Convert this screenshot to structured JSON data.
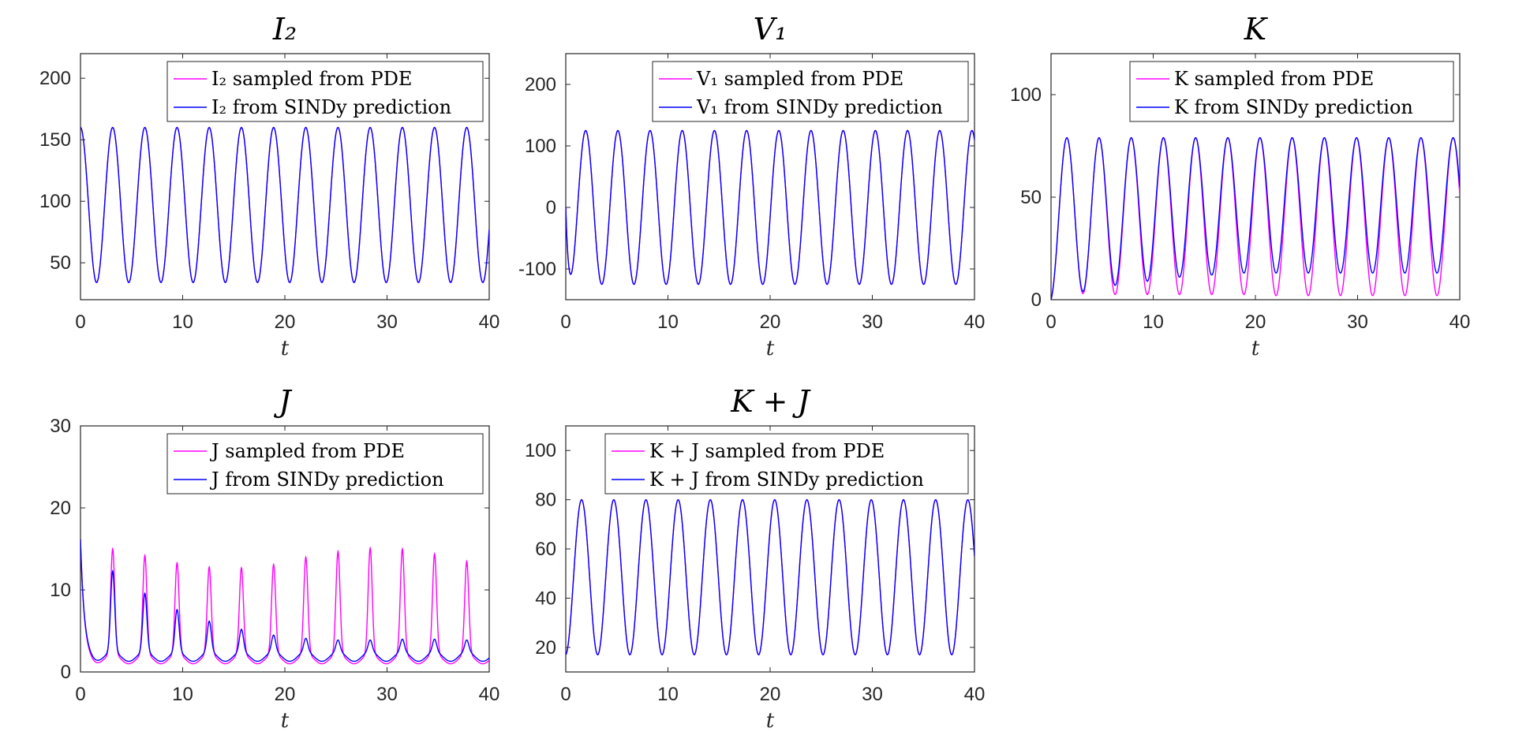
{
  "colors": {
    "pde": "#ff00ff",
    "sindy": "#0000ff"
  },
  "chart_data": [
    {
      "type": "line",
      "title": "I₂",
      "xlabel": "t",
      "xlim": [
        0,
        40
      ],
      "ylim": [
        20,
        220
      ],
      "xticks": [
        "0",
        "10",
        "20",
        "30",
        "40"
      ],
      "yticks": [
        "50",
        "100",
        "150",
        "200"
      ],
      "legend": "top-right",
      "series": [
        {
          "name": "I₂ sampled from PDE",
          "period": 3.15,
          "phase": 0,
          "start": 160,
          "max": 160,
          "min": 34
        },
        {
          "name": "I₂ from SINDy prediction",
          "period": 3.15,
          "phase": 0,
          "start": 160,
          "max": 160,
          "min": 34
        }
      ]
    },
    {
      "type": "line",
      "title": "V₁",
      "xlabel": "t",
      "xlim": [
        0,
        40
      ],
      "ylim": [
        -150,
        250
      ],
      "xticks": [
        "0",
        "10",
        "20",
        "30",
        "40"
      ],
      "yticks": [
        "-100",
        "0",
        "100",
        "200"
      ],
      "legend": "top-right",
      "series": [
        {
          "name": "V₁ sampled from PDE",
          "period": 3.15,
          "phase": -1.2,
          "start": 0,
          "max": 125,
          "min": -125
        },
        {
          "name": "V₁ from SINDy prediction",
          "period": 3.15,
          "phase": -1.2,
          "start": 0,
          "max": 125,
          "min": -125
        }
      ]
    },
    {
      "type": "line",
      "title": "K",
      "xlabel": "t",
      "xlim": [
        0,
        40
      ],
      "ylim": [
        0,
        120
      ],
      "xticks": [
        "0",
        "10",
        "20",
        "30",
        "40"
      ],
      "yticks": [
        "0",
        "50",
        "100"
      ],
      "legend": "top-right",
      "series": [
        {
          "name": "K sampled from PDE",
          "period": 3.15,
          "phase": 1.55,
          "start": 0,
          "max": 79,
          "min_list": [
            3,
            2.5,
            2.5,
            2.5,
            2.5,
            2.5,
            2,
            2,
            2,
            2,
            2,
            2,
            2
          ],
          "min": 3
        },
        {
          "name": "K from SINDy prediction",
          "period": 3.15,
          "phase": 1.55,
          "start": 0,
          "max": 79,
          "min_list": [
            4,
            7,
            9,
            11,
            12,
            13,
            13,
            13,
            13,
            13,
            13,
            13,
            13
          ],
          "min": 13
        }
      ]
    },
    {
      "type": "line",
      "title": "J",
      "xlabel": "t",
      "xlim": [
        0,
        40
      ],
      "ylim": [
        0,
        30
      ],
      "xticks": [
        "0",
        "10",
        "20",
        "30",
        "40"
      ],
      "yticks": [
        "0",
        "10",
        "20",
        "30"
      ],
      "legend": "top-right",
      "series": [
        {
          "name": "J sampled from PDE",
          "period": 3.15,
          "phase": 3.15,
          "start": 15,
          "base": 1.0,
          "peaks": [
            15,
            14.2,
            13.3,
            12.8,
            12.7,
            13.1,
            14,
            14.7,
            15.1,
            15,
            14.4,
            13.5
          ]
        },
        {
          "name": "J from SINDy prediction",
          "period": 3.15,
          "phase": 3.15,
          "start": 15,
          "base": 1.3,
          "peaks": [
            12.3,
            9.6,
            7.6,
            6.2,
            5.2,
            4.5,
            4.1,
            3.9,
            3.9,
            4.0,
            4.0,
            3.9
          ]
        }
      ]
    },
    {
      "type": "line",
      "title": "K + J",
      "xlabel": "t",
      "xlim": [
        0,
        40
      ],
      "ylim": [
        10,
        110
      ],
      "xticks": [
        "0",
        "10",
        "20",
        "30",
        "40"
      ],
      "yticks": [
        "20",
        "40",
        "60",
        "80",
        "100"
      ],
      "legend": "top-right",
      "series": [
        {
          "name": "K + J sampled from PDE",
          "period": 3.15,
          "phase": 1.55,
          "start": 17,
          "max": 80,
          "min": 17
        },
        {
          "name": "K + J from SINDy prediction",
          "period": 3.15,
          "phase": 1.55,
          "start": 17,
          "max": 80,
          "min": 17
        }
      ]
    }
  ]
}
